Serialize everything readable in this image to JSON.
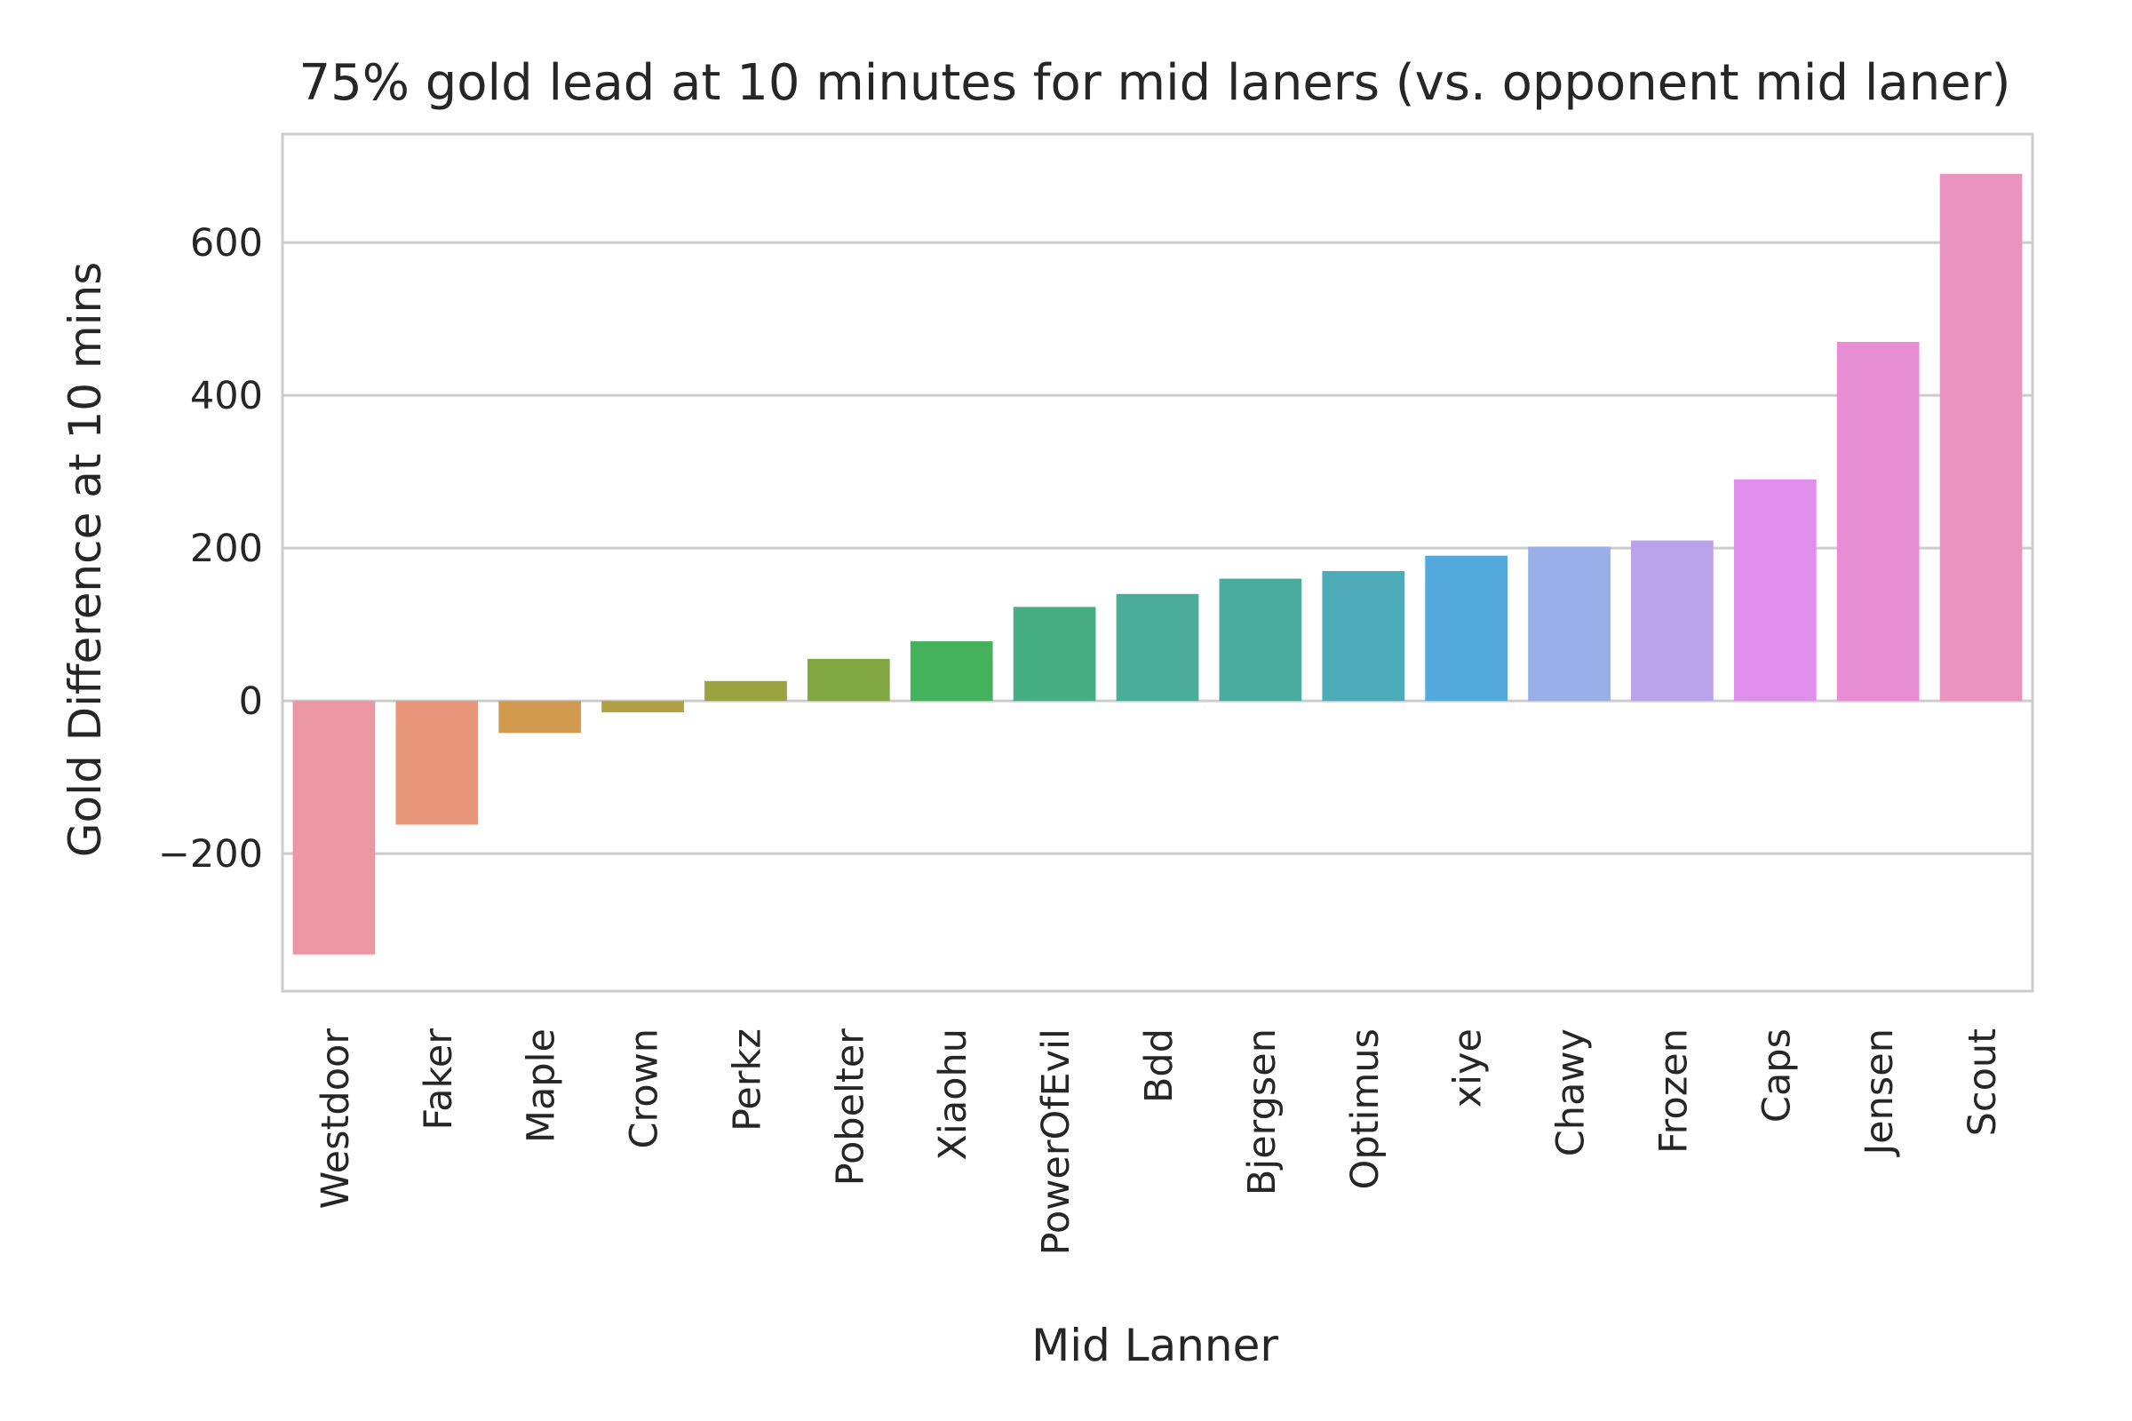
{
  "chart_data": {
    "type": "bar",
    "title": "75% gold lead at 10 minutes for mid laners (vs. opponent mid laner)",
    "xlabel": "Mid Lanner",
    "ylabel": "Gold Difference at 10 mins",
    "categories": [
      "Westdoor",
      "Faker",
      "Maple",
      "Crown",
      "Perkz",
      "Pobelter",
      "Xiaohu",
      "PowerOfEvil",
      "Bdd",
      "Bjergsen",
      "Optimus",
      "xiye",
      "Chawy",
      "Frozen",
      "Caps",
      "Jensen",
      "Scout"
    ],
    "values": [
      -332,
      -162,
      -42,
      -15,
      26,
      55,
      78,
      123,
      140,
      160,
      170,
      190,
      202,
      210,
      290,
      470,
      690
    ],
    "colors": [
      "#ea96a3",
      "#e8977a",
      "#d19a4e",
      "#b3a044",
      "#9aa241",
      "#82a844",
      "#44b15c",
      "#47ad82",
      "#4aad9a",
      "#4aab9f",
      "#4eabb8",
      "#53a9d9",
      "#9aaee8",
      "#bba3ea",
      "#de8fea",
      "#e68dd4",
      "#e993be"
    ],
    "yticks": [
      -200,
      0,
      200,
      400,
      600
    ],
    "ytick_labels": [
      "−200",
      "0",
      "200",
      "400",
      "600"
    ],
    "ylim": [
      -380,
      742
    ],
    "grid": true,
    "legend": "none"
  }
}
